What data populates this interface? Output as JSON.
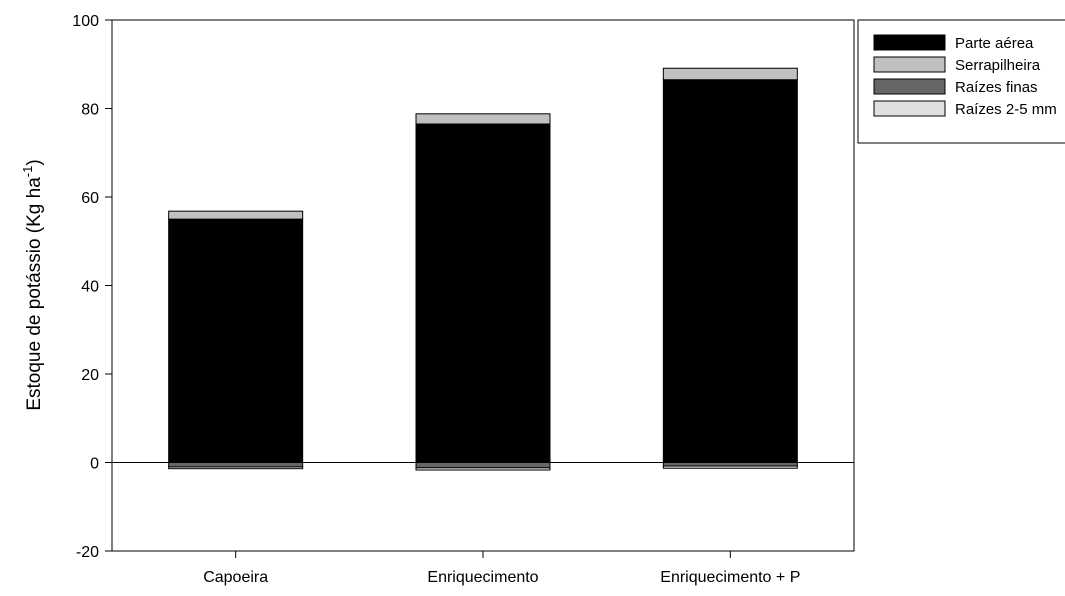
{
  "chart_data": {
    "type": "bar",
    "stacked": true,
    "categories": [
      "Capoeira",
      "Enriquecimento",
      "Enriquecimento + P"
    ],
    "ylabel_main": "Estoque de potássio (Kg ha",
    "ylabel_sup": "-1",
    "ylabel_close": ")",
    "ylim": [
      -20,
      100
    ],
    "yticks": [
      -20,
      0,
      20,
      40,
      60,
      80,
      100
    ],
    "grid": false,
    "legend_position": "top-right",
    "series": [
      {
        "name": "Parte aérea",
        "color": "#000000",
        "values": [
          55.0,
          76.5,
          86.5
        ],
        "direction": "up"
      },
      {
        "name": "Serrapilheira",
        "color": "#c0c0c0",
        "values": [
          1.8,
          2.3,
          2.6
        ],
        "direction": "up"
      },
      {
        "name": "Raízes finas",
        "color": "#666666",
        "values": [
          1.0,
          1.2,
          0.8
        ],
        "direction": "down"
      },
      {
        "name": "Raízes 2-5 mm",
        "color": "#e0e0e0",
        "values": [
          0.4,
          0.5,
          0.5
        ],
        "direction": "down"
      }
    ]
  }
}
